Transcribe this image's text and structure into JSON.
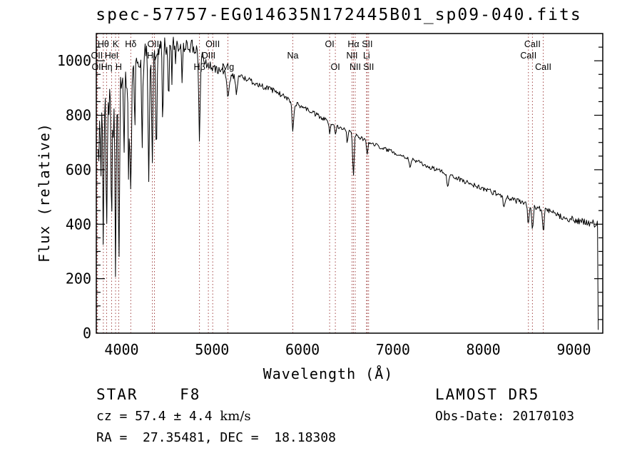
{
  "title": "spec-57757-EG014635N172445B01_sp09-040.fits",
  "colors": {
    "background": "#ffffff",
    "foreground": "#000000",
    "marker_line": "#993333",
    "trace": "#000000"
  },
  "footer": {
    "classification": "STAR    F8",
    "survey": "LAMOST DR5",
    "cz_prefix": "cz = 57.4 ± 4.4 ",
    "cz_units": "km/s",
    "obs_date": "Obs-Date: 20170103",
    "radec": "RA =  27.35481, DEC =  18.18308"
  },
  "chart_data": {
    "type": "line",
    "title": "spec-57757-EG014635N172445B01_sp09-040.fits",
    "xlabel": "Wavelength (Å)",
    "ylabel": "Flux (relative)",
    "xlim": [
      3720,
      9320
    ],
    "ylim": [
      0,
      1100
    ],
    "x_ticks": [
      4000,
      5000,
      6000,
      7000,
      8000,
      9000
    ],
    "x_minor_step": 100,
    "y_ticks": [
      0,
      200,
      400,
      600,
      800,
      1000
    ],
    "y_minor_step": 50,
    "grid": false,
    "legend": "none",
    "series": [
      {
        "name": "flux",
        "continuum_points": [
          [
            3740,
            860
          ],
          [
            3800,
            890
          ],
          [
            3850,
            900
          ],
          [
            3900,
            880
          ],
          [
            3950,
            875
          ],
          [
            4000,
            930
          ],
          [
            4100,
            960
          ],
          [
            4200,
            1010
          ],
          [
            4300,
            1025
          ],
          [
            4400,
            1045
          ],
          [
            4500,
            1050
          ],
          [
            4600,
            1062
          ],
          [
            4700,
            1065
          ],
          [
            4800,
            1045
          ],
          [
            4900,
            1010
          ],
          [
            5000,
            970
          ],
          [
            5100,
            965
          ],
          [
            5200,
            945
          ],
          [
            5300,
            945
          ],
          [
            5400,
            930
          ],
          [
            5500,
            915
          ],
          [
            5600,
            900
          ],
          [
            5700,
            888
          ],
          [
            5800,
            868
          ],
          [
            5900,
            845
          ],
          [
            6000,
            832
          ],
          [
            6100,
            812
          ],
          [
            6200,
            792
          ],
          [
            6300,
            775
          ],
          [
            6400,
            758
          ],
          [
            6500,
            748
          ],
          [
            6600,
            725
          ],
          [
            6700,
            705
          ],
          [
            6800,
            692
          ],
          [
            6900,
            678
          ],
          [
            7000,
            665
          ],
          [
            7100,
            652
          ],
          [
            7200,
            640
          ],
          [
            7300,
            625
          ],
          [
            7400,
            610
          ],
          [
            7500,
            598
          ],
          [
            7600,
            585
          ],
          [
            7700,
            570
          ],
          [
            7800,
            556
          ],
          [
            7900,
            543
          ],
          [
            8000,
            530
          ],
          [
            8100,
            518
          ],
          [
            8200,
            506
          ],
          [
            8300,
            494
          ],
          [
            8400,
            482
          ],
          [
            8500,
            468
          ],
          [
            8600,
            458
          ],
          [
            8700,
            448
          ],
          [
            8800,
            436
          ],
          [
            9000,
            415
          ],
          [
            9100,
            408
          ],
          [
            9200,
            402
          ],
          [
            9260,
            398
          ]
        ],
        "absorption_lines": [
          [
            3745,
            260,
            6
          ],
          [
            3770,
            320,
            6
          ],
          [
            3798,
            430,
            7
          ],
          [
            3835,
            470,
            7
          ],
          [
            3889,
            490,
            7
          ],
          [
            3933,
            600,
            7
          ],
          [
            3970,
            640,
            7
          ],
          [
            4026,
            260,
            6
          ],
          [
            4077,
            360,
            6
          ],
          [
            4101,
            470,
            7
          ],
          [
            4144,
            220,
            6
          ],
          [
            4227,
            330,
            6
          ],
          [
            4300,
            430,
            7
          ],
          [
            4340,
            430,
            7
          ],
          [
            4383,
            420,
            6
          ],
          [
            4455,
            250,
            6
          ],
          [
            4520,
            230,
            6
          ],
          [
            4668,
            160,
            6
          ],
          [
            4861,
            300,
            8
          ],
          [
            5175,
            70,
            14
          ],
          [
            5270,
            60,
            10
          ],
          [
            5893,
            105,
            9
          ],
          [
            6300,
            45,
            7
          ],
          [
            6363,
            35,
            7
          ],
          [
            6495,
            60,
            6
          ],
          [
            6563,
            150,
            8
          ],
          [
            6716,
            40,
            8
          ],
          [
            7190,
            30,
            10
          ],
          [
            7605,
            45,
            9
          ],
          [
            8230,
            40,
            10
          ],
          [
            8498,
            70,
            8
          ],
          [
            8542,
            90,
            8
          ],
          [
            8662,
            80,
            8
          ]
        ],
        "noise_profile": [
          [
            3740,
            50
          ],
          [
            3900,
            52
          ],
          [
            4100,
            48
          ],
          [
            4300,
            42
          ],
          [
            4500,
            38
          ],
          [
            4700,
            32
          ],
          [
            4900,
            22
          ],
          [
            5100,
            14
          ],
          [
            5300,
            11
          ],
          [
            5600,
            10
          ],
          [
            6000,
            9
          ],
          [
            6500,
            8
          ],
          [
            7000,
            7
          ],
          [
            7600,
            8
          ],
          [
            8200,
            10
          ],
          [
            8700,
            12
          ],
          [
            9100,
            13
          ],
          [
            9260,
            18
          ]
        ],
        "blue_spikes": {
          "lambda_max": 4600,
          "probability": 0.18,
          "max_depth": 150
        },
        "sample_step": 8,
        "data_start": 3740,
        "data_end": 9260,
        "tail_points": [
          [
            9262,
            390
          ],
          [
            9266,
            180
          ],
          [
            9270,
            12
          ]
        ]
      }
    ],
    "spectral_line_markers": [
      {
        "label": "OII",
        "wavelength": 3727,
        "row": 2
      },
      {
        "label": "OII",
        "wavelength": 3734,
        "row": 3
      },
      {
        "label": "Hθ",
        "wavelength": 3798,
        "row": 1
      },
      {
        "label": "Hη",
        "wavelength": 3835,
        "row": 3
      },
      {
        "label": "HeI",
        "wavelength": 3889,
        "row": 2
      },
      {
        "label": "K",
        "wavelength": 3933,
        "row": 1
      },
      {
        "label": "H",
        "wavelength": 3968,
        "row": 3
      },
      {
        "label": "Hδ",
        "wavelength": 4101,
        "row": 1
      },
      {
        "label": "Hγ",
        "wavelength": 4340,
        "row": 2
      },
      {
        "label": "OIII",
        "wavelength": 4363,
        "row": 1
      },
      {
        "label": "Hβ",
        "wavelength": 4861,
        "row": 3
      },
      {
        "label": "OIII",
        "wavelength": 4959,
        "row": 2
      },
      {
        "label": "OIII",
        "wavelength": 5007,
        "row": 1
      },
      {
        "label": "Mg",
        "wavelength": 5175,
        "row": 3
      },
      {
        "label": "Na",
        "wavelength": 5893,
        "row": 2
      },
      {
        "label": "OI",
        "wavelength": 6300,
        "row": 1
      },
      {
        "label": "OI",
        "wavelength": 6363,
        "row": 3
      },
      {
        "label": "NII",
        "wavelength": 6548,
        "row": 2
      },
      {
        "label": "Hα",
        "wavelength": 6563,
        "row": 1
      },
      {
        "label": "NII",
        "wavelength": 6583,
        "row": 3
      },
      {
        "label": "Li",
        "wavelength": 6708,
        "row": 2
      },
      {
        "label": "SII",
        "wavelength": 6716,
        "row": 1
      },
      {
        "label": "SII",
        "wavelength": 6731,
        "row": 3
      },
      {
        "label": "CaII",
        "wavelength": 8498,
        "row": 2
      },
      {
        "label": "CaII",
        "wavelength": 8542,
        "row": 1
      },
      {
        "label": "CaII",
        "wavelength": 8662,
        "row": 3
      }
    ]
  }
}
